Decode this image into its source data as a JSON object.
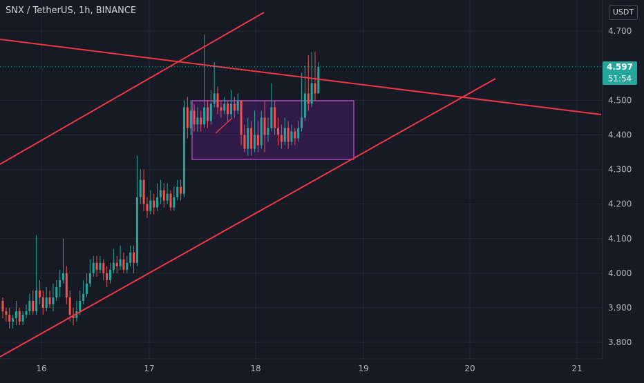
{
  "header": {
    "symbol": "SNX / TetherUS, 1h, BINANCE"
  },
  "axis": {
    "currency": "USDT"
  },
  "current": {
    "price": "4.597",
    "countdown": "51:54"
  },
  "colors": {
    "up": "#26a69a",
    "down": "#ef5350",
    "trendline": "#f23645",
    "box_border": "#ab47bc",
    "box_fill": "#6a1b9a"
  },
  "chart_data": {
    "type": "candlestick",
    "y_ticks": [
      "4.700",
      "4.500",
      "4.400",
      "4.300",
      "4.200",
      "4.100",
      "4.000",
      "3.900",
      "3.800"
    ],
    "x_ticks": [
      "16",
      "17",
      "18",
      "19",
      "20",
      "21"
    ],
    "ylim": [
      3.75,
      4.75
    ],
    "grid": true,
    "candles": [
      [
        3.92,
        3.89,
        3.93,
        3.87
      ],
      [
        3.89,
        3.88,
        3.9,
        3.86
      ],
      [
        3.88,
        3.86,
        3.9,
        3.84
      ],
      [
        3.86,
        3.87,
        3.88,
        3.84
      ],
      [
        3.87,
        3.89,
        3.92,
        3.85
      ],
      [
        3.89,
        3.86,
        3.9,
        3.85
      ],
      [
        3.86,
        3.88,
        3.89,
        3.85
      ],
      [
        3.88,
        3.89,
        3.91,
        3.87
      ],
      [
        3.89,
        3.92,
        3.94,
        3.88
      ],
      [
        3.92,
        3.89,
        3.95,
        3.88
      ],
      [
        3.89,
        3.95,
        4.11,
        3.88
      ],
      [
        3.95,
        3.93,
        3.98,
        3.91
      ],
      [
        3.93,
        3.9,
        3.95,
        3.88
      ],
      [
        3.9,
        3.93,
        3.96,
        3.89
      ],
      [
        3.93,
        3.91,
        3.95,
        3.9
      ],
      [
        3.91,
        3.93,
        3.97,
        3.89
      ],
      [
        3.93,
        3.96,
        3.98,
        3.92
      ],
      [
        3.96,
        3.98,
        4.01,
        3.93
      ],
      [
        3.98,
        4.0,
        4.1,
        3.97
      ],
      [
        4.0,
        3.93,
        4.02,
        3.91
      ],
      [
        3.93,
        3.88,
        3.95,
        3.86
      ],
      [
        3.88,
        3.87,
        3.9,
        3.85
      ],
      [
        3.87,
        3.89,
        3.92,
        3.86
      ],
      [
        3.89,
        3.92,
        3.95,
        3.88
      ],
      [
        3.92,
        3.94,
        3.98,
        3.91
      ],
      [
        3.94,
        3.97,
        4.0,
        3.93
      ],
      [
        3.97,
        4.0,
        4.04,
        3.96
      ],
      [
        4.0,
        4.03,
        4.05,
        3.99
      ],
      [
        4.03,
        4.01,
        4.05,
        3.99
      ],
      [
        4.01,
        4.03,
        4.05,
        4.0
      ],
      [
        4.03,
        4.0,
        4.04,
        3.98
      ],
      [
        4.0,
        3.98,
        4.02,
        3.96
      ],
      [
        3.98,
        4.01,
        4.03,
        3.97
      ],
      [
        4.01,
        4.03,
        4.07,
        4.0
      ],
      [
        4.03,
        4.02,
        4.05,
        4.0
      ],
      [
        4.02,
        4.04,
        4.08,
        4.01
      ],
      [
        4.04,
        4.01,
        4.06,
        4.0
      ],
      [
        4.01,
        4.03,
        4.05,
        4.0
      ],
      [
        4.03,
        4.06,
        4.08,
        4.02
      ],
      [
        4.06,
        4.03,
        4.08,
        4.0
      ],
      [
        4.03,
        4.22,
        4.34,
        4.02
      ],
      [
        4.22,
        4.27,
        4.3,
        4.2
      ],
      [
        4.27,
        4.2,
        4.3,
        4.18
      ],
      [
        4.2,
        4.18,
        4.22,
        4.16
      ],
      [
        4.18,
        4.21,
        4.24,
        4.17
      ],
      [
        4.21,
        4.19,
        4.23,
        4.17
      ],
      [
        4.19,
        4.22,
        4.26,
        4.18
      ],
      [
        4.22,
        4.24,
        4.27,
        4.2
      ],
      [
        4.24,
        4.21,
        4.26,
        4.19
      ],
      [
        4.21,
        4.23,
        4.26,
        4.2
      ],
      [
        4.23,
        4.19,
        4.24,
        4.18
      ],
      [
        4.19,
        4.22,
        4.25,
        4.18
      ],
      [
        4.22,
        4.25,
        4.27,
        4.21
      ],
      [
        4.25,
        4.23,
        4.27,
        4.21
      ],
      [
        4.23,
        4.48,
        4.5,
        4.22
      ],
      [
        4.48,
        4.42,
        4.51,
        4.39
      ],
      [
        4.42,
        4.47,
        4.5,
        4.4
      ],
      [
        4.47,
        4.43,
        4.49,
        4.41
      ],
      [
        4.43,
        4.45,
        4.48,
        4.41
      ],
      [
        4.45,
        4.43,
        4.47,
        4.41
      ],
      [
        4.43,
        4.48,
        4.69,
        4.42
      ],
      [
        4.48,
        4.44,
        4.5,
        4.42
      ],
      [
        4.44,
        4.49,
        4.53,
        4.43
      ],
      [
        4.49,
        4.52,
        4.61,
        4.48
      ],
      [
        4.52,
        4.48,
        4.54,
        4.46
      ],
      [
        4.48,
        4.47,
        4.5,
        4.45
      ],
      [
        4.47,
        4.49,
        4.51,
        4.46
      ],
      [
        4.49,
        4.46,
        4.5,
        4.44
      ],
      [
        4.46,
        4.49,
        4.53,
        4.45
      ],
      [
        4.49,
        4.47,
        4.51,
        4.45
      ],
      [
        4.47,
        4.5,
        4.52,
        4.46
      ],
      [
        4.5,
        4.4,
        4.5,
        4.37
      ],
      [
        4.4,
        4.36,
        4.43,
        4.35
      ],
      [
        4.36,
        4.42,
        4.45,
        4.34
      ],
      [
        4.42,
        4.36,
        4.44,
        4.34
      ],
      [
        4.36,
        4.4,
        4.47,
        4.35
      ],
      [
        4.4,
        4.37,
        4.44,
        4.35
      ],
      [
        4.37,
        4.45,
        4.47,
        4.36
      ],
      [
        4.45,
        4.4,
        4.5,
        4.35
      ],
      [
        4.4,
        4.42,
        4.45,
        4.38
      ],
      [
        4.42,
        4.48,
        4.55,
        4.41
      ],
      [
        4.48,
        4.42,
        4.5,
        4.4
      ],
      [
        4.42,
        4.4,
        4.45,
        4.37
      ],
      [
        4.4,
        4.38,
        4.43,
        4.36
      ],
      [
        4.38,
        4.42,
        4.45,
        4.37
      ],
      [
        4.42,
        4.38,
        4.44,
        4.36
      ],
      [
        4.38,
        4.41,
        4.43,
        4.37
      ],
      [
        4.41,
        4.39,
        4.42,
        4.37
      ],
      [
        4.39,
        4.42,
        4.44,
        4.38
      ],
      [
        4.42,
        4.45,
        4.58,
        4.41
      ],
      [
        4.45,
        4.52,
        4.6,
        4.44
      ],
      [
        4.52,
        4.49,
        4.63,
        4.47
      ],
      [
        4.49,
        4.55,
        4.64,
        4.48
      ],
      [
        4.55,
        4.52,
        4.64,
        4.5
      ],
      [
        4.52,
        4.597,
        4.61,
        4.53
      ]
    ]
  }
}
